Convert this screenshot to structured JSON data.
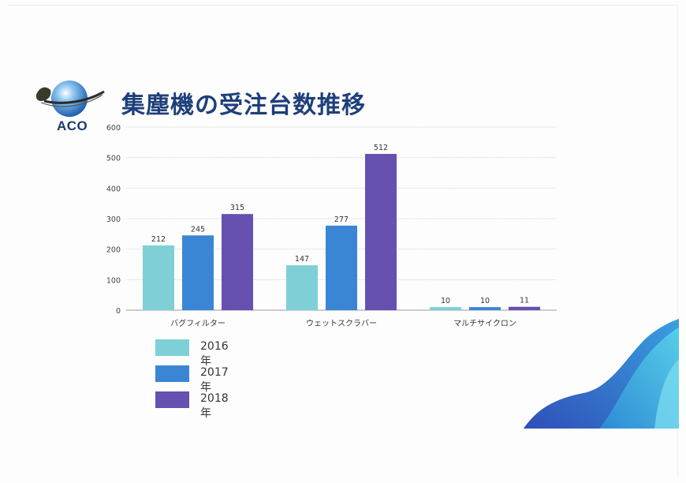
{
  "page": {
    "title": "集塵機の受注台数推移"
  },
  "logo": {
    "text": "ACO",
    "icon": "globe-icon"
  },
  "colors": {
    "title": "#1e3f7a",
    "s2016": "#7ecfd6",
    "s2017": "#3a86d4",
    "s2018": "#6650b0",
    "grid": "#d4d4d4",
    "axis": "#9a9a9a"
  },
  "chart_data": {
    "type": "bar",
    "categories": [
      "バグフィルター",
      "ウェットスクラバー",
      "マルチサイクロン"
    ],
    "series": [
      {
        "name": "2016年",
        "values": [
          212,
          147,
          10
        ],
        "color": "#7ecfd6"
      },
      {
        "name": "2017年",
        "values": [
          245,
          277,
          10
        ],
        "color": "#3a86d4"
      },
      {
        "name": "2018年",
        "values": [
          315,
          512,
          11
        ],
        "color": "#6650b0"
      }
    ],
    "yticks": [
      "0",
      "100",
      "200",
      "300",
      "400",
      "500",
      "600"
    ],
    "ylim": [
      0,
      600
    ],
    "grid": true,
    "legend_position": "bottom-left"
  }
}
